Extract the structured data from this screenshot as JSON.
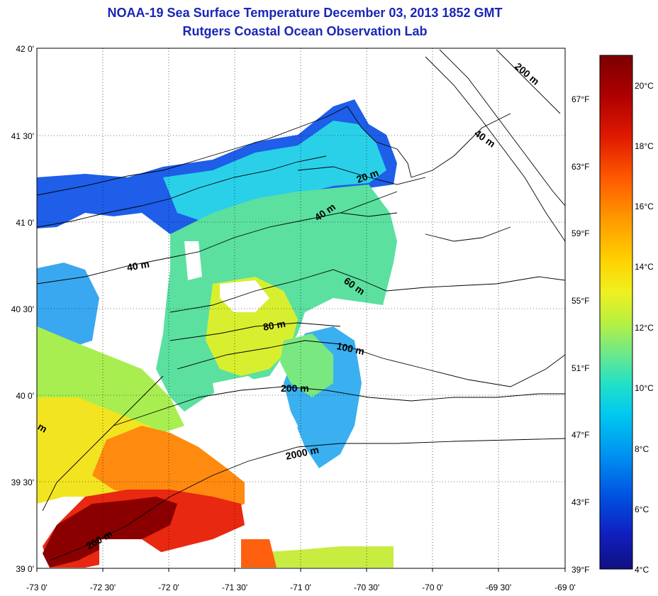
{
  "title": "NOAA-19 Sea Surface Temperature December 03, 2013 1852 GMT",
  "subtitle": "Rutgers Coastal Ocean Observation Lab",
  "map": {
    "lon_ticks": [
      "-73 0'",
      "-72 30'",
      "-72 0'",
      "-71 30'",
      "-71 0'",
      "-70 30'",
      "-70 0'",
      "-69 30'",
      "-69 0'"
    ],
    "lat_ticks": [
      "42 0'",
      "41 30'",
      "41 0'",
      "40 30'",
      "40 0'",
      "39 30'",
      "39 0'"
    ],
    "lon_range": [
      -73,
      -69
    ],
    "lat_range": [
      39,
      42
    ],
    "grid": true,
    "depth_contour_labels": [
      "200 m",
      "40 m",
      "20 m",
      "40 m",
      "40 m",
      "60 m",
      "80 m",
      "100 m",
      "200 m",
      "2000 m",
      "200 m",
      "m"
    ]
  },
  "colorbar": {
    "celsius_labels": [
      "20°C",
      "18°C",
      "16°C",
      "14°C",
      "12°C",
      "10°C",
      "8°C",
      "6°C",
      "4°C"
    ],
    "fahrenheit_labels": [
      "67°F",
      "63°F",
      "59°F",
      "55°F",
      "51°F",
      "47°F",
      "43°F",
      "39°F"
    ],
    "range_c": [
      4,
      21
    ],
    "colors": [
      "#7a0000",
      "#b00000",
      "#e01a00",
      "#ff5a00",
      "#ff9a00",
      "#ffd200",
      "#f0f020",
      "#b8f040",
      "#6ee88a",
      "#22e0c8",
      "#00c8f0",
      "#0090f0",
      "#0050e0",
      "#1020c0",
      "#101080"
    ]
  }
}
